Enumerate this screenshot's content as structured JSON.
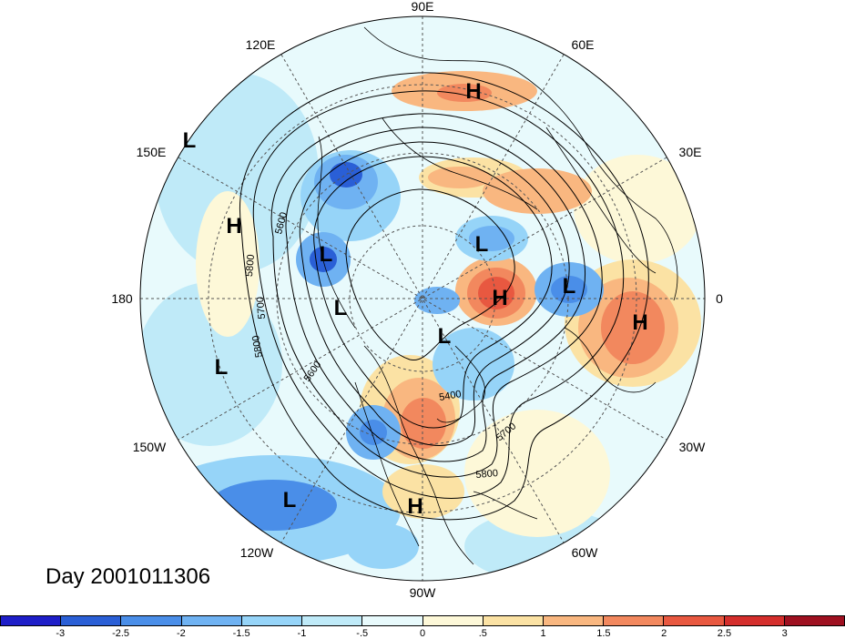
{
  "map": {
    "projection": "polar stereographic (Northern Hemisphere)",
    "longitude_labels": [
      {
        "text": "90E"
      },
      {
        "text": "60E"
      },
      {
        "text": "30E"
      },
      {
        "text": "0"
      },
      {
        "text": "30W"
      },
      {
        "text": "60W"
      },
      {
        "text": "90W"
      },
      {
        "text": "120W"
      },
      {
        "text": "150W"
      },
      {
        "text": "180"
      },
      {
        "text": "150E"
      },
      {
        "text": "120E"
      }
    ],
    "pressure_centers": [
      {
        "type": "H",
        "location": "northern Siberia"
      },
      {
        "type": "L",
        "location": "Kamchatka"
      },
      {
        "type": "H",
        "location": "NW Pacific"
      },
      {
        "type": "L",
        "location": "Okhotsk Sea"
      },
      {
        "type": "L",
        "location": "East Siberian Sea"
      },
      {
        "type": "L",
        "location": "Kara Sea"
      },
      {
        "type": "H",
        "location": "Scandinavia"
      },
      {
        "type": "L",
        "location": "Iceland"
      },
      {
        "type": "H",
        "location": "North Atlantic"
      },
      {
        "type": "L",
        "location": "Baffin Bay"
      },
      {
        "type": "L",
        "location": "NE Pacific"
      },
      {
        "type": "L",
        "location": "subtropical Pacific"
      },
      {
        "type": "H",
        "location": "Gulf of Mexico"
      }
    ],
    "contour_labels": [
      "5600",
      "5800",
      "5700",
      "5800",
      "5600",
      "5400",
      "5700",
      "5800"
    ]
  },
  "day_label": "Day 2001011306",
  "colorbar": {
    "colors": [
      "#1e1ec8",
      "#2a5fd6",
      "#4a8ee8",
      "#6fb2f2",
      "#96d4f8",
      "#bfeaf8",
      "#e8fafc",
      "#fdf8d8",
      "#fbe2a4",
      "#f9b780",
      "#f2885e",
      "#e85840",
      "#d42e2c",
      "#9e1020"
    ],
    "ticks": [
      "-3",
      "-2.5",
      "-2",
      "-1.5",
      "-1",
      "-.5",
      "0",
      ".5",
      "1",
      "1.5",
      "2",
      "2.5",
      "3"
    ]
  }
}
